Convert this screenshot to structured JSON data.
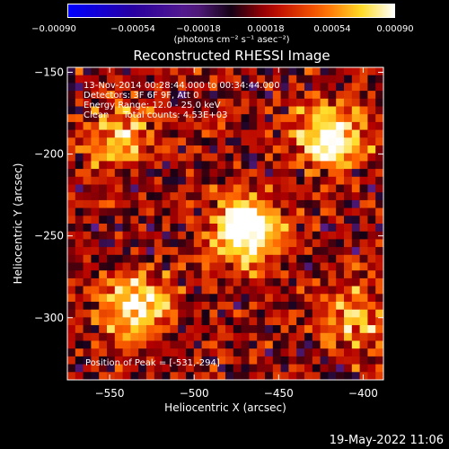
{
  "chart_data": {
    "type": "heatmap",
    "title": "Reconstructed RHESSI Image",
    "xlabel": "Heliocentric X (arcsec)",
    "ylabel": "Heliocentric Y (arcsec)",
    "xlim": [
      -575,
      -388
    ],
    "ylim": [
      -338,
      -147
    ],
    "xticks": [
      -550,
      -500,
      -450,
      -400
    ],
    "yticks": [
      -150,
      -200,
      -250,
      -300
    ],
    "xtick_labels": [
      "−550",
      "−500",
      "−450",
      "−400"
    ],
    "ytick_labels": [
      "−150",
      "−200",
      "−250",
      "−300"
    ],
    "colorbar": {
      "range": [
        -0.0009,
        0.0009
      ],
      "ticks": [
        "−0.00090",
        "−0.00054",
        "−0.00018",
        "0.00018",
        "0.00054",
        "0.00090"
      ],
      "tick_values": [
        -0.0009,
        -0.00054,
        -0.00018,
        0.00018,
        0.00054,
        0.0009
      ],
      "unit_label": "(photons cm⁻² s⁻¹ asec⁻²)"
    },
    "annotations": [
      "13-Nov-2014 00:28:44.000 to 00:34:44.000",
      "Detectors: 3F 6F 9F, Att 0",
      "Energy Range: 12.0 - 25.0 keV",
      "Clean     Total counts: 4.53E+03"
    ],
    "peak_label": "Position of Peak = [-531,-294]",
    "sources": [
      {
        "x": -470,
        "y": -247,
        "amplitude": 1.0
      },
      {
        "x": -535,
        "y": -292,
        "amplitude": 0.75
      },
      {
        "x": -420,
        "y": -190,
        "amplitude": 0.8
      },
      {
        "x": -545,
        "y": -190,
        "amplitude": 0.55
      },
      {
        "x": -405,
        "y": -300,
        "amplitude": 0.5
      }
    ]
  },
  "footer_date": "19-May-2022 11:06"
}
